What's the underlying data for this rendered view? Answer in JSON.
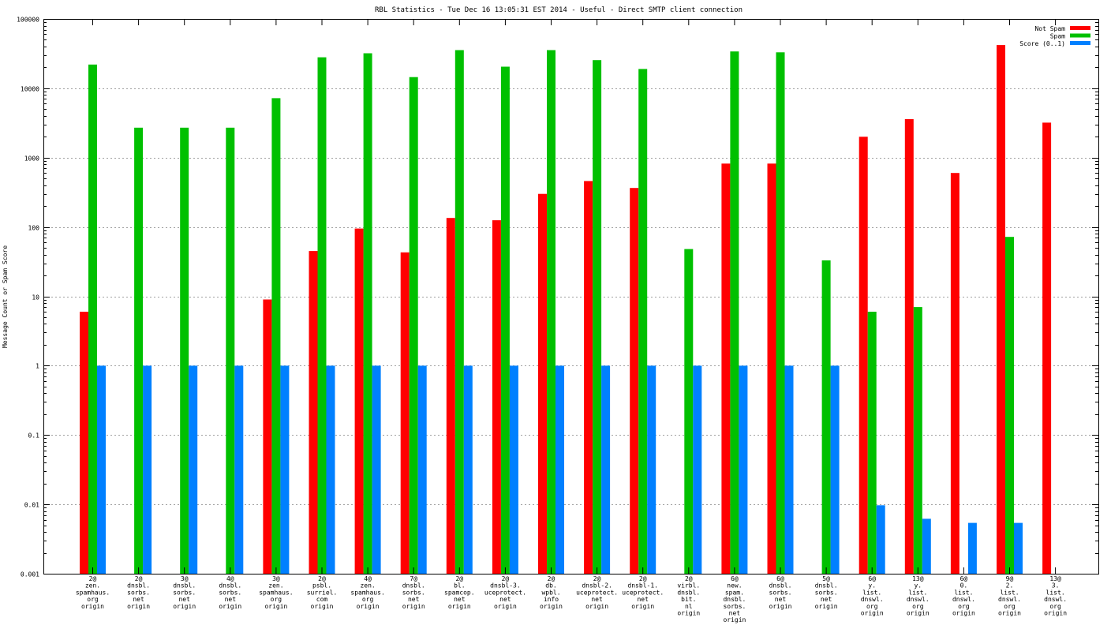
{
  "chart_data": {
    "type": "bar",
    "title": "RBL Statistics - Tue Dec 16 13:05:31 EST 2014 - Useful - Direct SMTP client connection",
    "ylabel": "Message Count or Spam Score",
    "xlabel": "",
    "yscale": "log",
    "ylim": [
      0.001,
      100000
    ],
    "yticks": [
      "0.001",
      "0.01",
      "0.1",
      "1",
      "10",
      "100",
      "1000",
      "10000",
      "100000"
    ],
    "grid": true,
    "legend_position": "top-right",
    "categories": [
      [
        "2@",
        "zen.",
        "spamhaus.",
        "org",
        "origin"
      ],
      [
        "2@",
        "dnsbl.",
        "sorbs.",
        "net",
        "origin"
      ],
      [
        "3@",
        "dnsbl.",
        "sorbs.",
        "net",
        "origin"
      ],
      [
        "4@",
        "dnsbl.",
        "sorbs.",
        "net",
        "origin"
      ],
      [
        "3@",
        "zen.",
        "spamhaus.",
        "org",
        "origin"
      ],
      [
        "2@",
        "psbl.",
        "surriel.",
        "com",
        "origin"
      ],
      [
        "4@",
        "zen.",
        "spamhaus.",
        "org",
        "origin"
      ],
      [
        "7@",
        "dnsbl.",
        "sorbs.",
        "net",
        "origin"
      ],
      [
        "2@",
        "bl.",
        "spamcop.",
        "net",
        "origin"
      ],
      [
        "2@",
        "dnsbl-3.",
        "uceprotect.",
        "net",
        "origin"
      ],
      [
        "2@",
        "db.",
        "wpbl.",
        "info",
        "origin"
      ],
      [
        "2@",
        "dnsbl-2.",
        "uceprotect.",
        "net",
        "origin"
      ],
      [
        "2@",
        "dnsbl-1.",
        "uceprotect.",
        "net",
        "origin"
      ],
      [
        "2@",
        "virbl.",
        "dnsbl.",
        "bit.",
        "nl",
        "origin"
      ],
      [
        "6@",
        "new.",
        "spam.",
        "dnsbl.",
        "sorbs.",
        "net",
        "origin"
      ],
      [
        "6@",
        "dnsbl.",
        "sorbs.",
        "net",
        "origin"
      ],
      [
        "5@",
        "dnsbl.",
        "sorbs.",
        "net",
        "origin"
      ],
      [
        "6@",
        "y.",
        "list.",
        "dnswl.",
        "org",
        "origin"
      ],
      [
        "13@",
        "y.",
        "list.",
        "dnswl.",
        "org",
        "origin"
      ],
      [
        "6@",
        "0.",
        "list.",
        "dnswl.",
        "org",
        "origin"
      ],
      [
        "9@",
        "2.",
        "list.",
        "dnswl.",
        "org",
        "origin"
      ],
      [
        "13@",
        "3.",
        "list.",
        "dnswl.",
        "org",
        "origin"
      ]
    ],
    "series": [
      {
        "name": "Not Spam",
        "color": "#ff0000",
        "values": [
          6,
          null,
          null,
          null,
          9,
          45,
          95,
          43,
          135,
          125,
          300,
          460,
          365,
          null,
          820,
          820,
          null,
          2000,
          3600,
          600,
          42000,
          3200
        ]
      },
      {
        "name": "Spam",
        "color": "#00c000",
        "values": [
          22000,
          2700,
          2700,
          2700,
          7200,
          28000,
          32000,
          14500,
          35500,
          20500,
          35500,
          25500,
          19000,
          48,
          34000,
          33000,
          33,
          6,
          7,
          null,
          72,
          null
        ]
      },
      {
        "name": "Score (0..1)",
        "color": "#0080ff",
        "values": [
          1,
          1,
          1,
          1,
          1,
          1,
          1,
          1,
          1,
          1,
          1,
          1,
          1,
          1,
          1,
          1,
          1,
          0.0097,
          0.0062,
          0.0054,
          0.0054,
          null
        ]
      }
    ]
  }
}
